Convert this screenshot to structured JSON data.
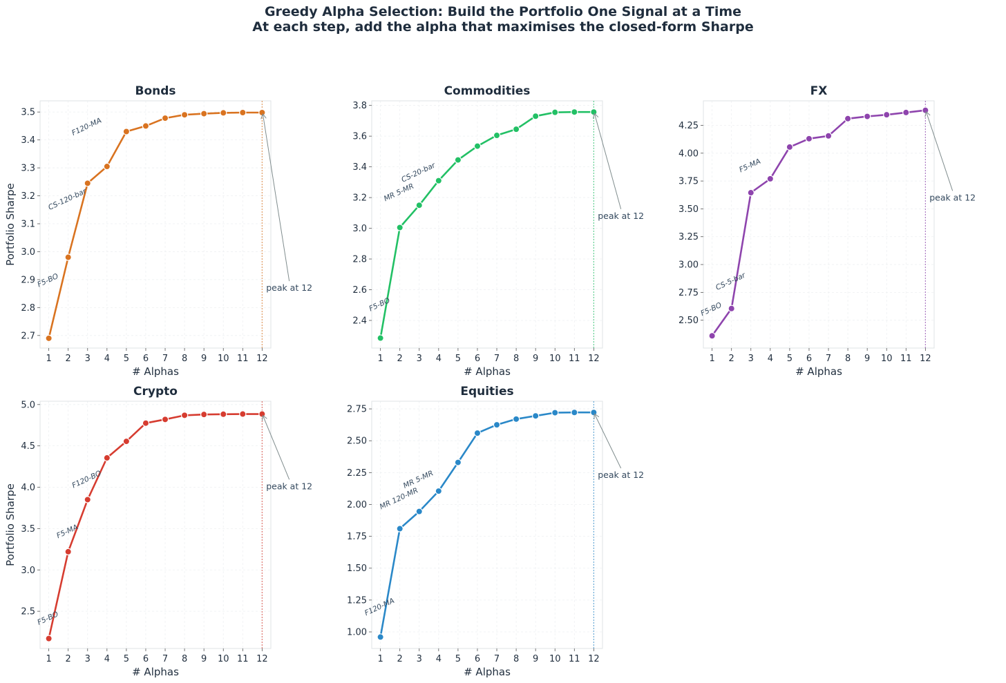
{
  "figure": {
    "title_line1": "Greedy Alpha Selection: Build the Portfolio One Signal at a Time",
    "title_line2": "At each step, add the alpha that maximises the closed-form Sharpe"
  },
  "chart_data": [
    {
      "type": "line",
      "title": "Bonds",
      "xlabel": "# Alphas",
      "ylabel": "Portfolio Sharpe",
      "color": "#d97320",
      "x": [
        1,
        2,
        3,
        4,
        5,
        6,
        7,
        8,
        9,
        10,
        11,
        12
      ],
      "values": [
        2.69,
        2.98,
        3.245,
        3.305,
        3.43,
        3.45,
        3.478,
        3.49,
        3.494,
        3.497,
        3.498,
        3.498
      ],
      "xlim": [
        0.55,
        12.45
      ],
      "ylim": [
        2.655,
        3.54
      ],
      "yticks": [
        2.7,
        2.8,
        2.9,
        3.0,
        3.1,
        3.2,
        3.3,
        3.4,
        3.5
      ],
      "ytick_labels": [
        "2.7",
        "2.8",
        "2.9",
        "3.0",
        "3.1",
        "3.2",
        "3.3",
        "3.4",
        "3.5"
      ],
      "peak_x": 12,
      "peak_label": "peak at 12",
      "peak_label_pos": [
        13.4,
        2.87
      ],
      "labels": [
        {
          "text": "F5-BO",
          "x": 1,
          "y": 2.89
        },
        {
          "text": "CS-120-bar",
          "x": 2,
          "y": 3.18
        },
        {
          "text": "F120-MA",
          "x": 3,
          "y": 3.44
        }
      ]
    },
    {
      "type": "line",
      "title": "Commodities",
      "xlabel": "# Alphas",
      "ylabel": "",
      "color": "#22c065",
      "x": [
        1,
        2,
        3,
        4,
        5,
        6,
        7,
        8,
        9,
        10,
        11,
        12
      ],
      "values": [
        2.285,
        3.005,
        3.15,
        3.31,
        3.445,
        3.535,
        3.605,
        3.645,
        3.73,
        3.755,
        3.757,
        3.757
      ],
      "xlim": [
        0.55,
        12.45
      ],
      "ylim": [
        2.22,
        3.83
      ],
      "yticks": [
        2.4,
        2.6,
        2.8,
        3.0,
        3.2,
        3.4,
        3.6,
        3.8
      ],
      "ytick_labels": [
        "2.4",
        "2.6",
        "2.8",
        "3.0",
        "3.2",
        "3.4",
        "3.6",
        "3.8"
      ],
      "peak_x": 12,
      "peak_label": "peak at 12",
      "peak_label_pos": [
        13.4,
        3.08
      ],
      "labels": [
        {
          "text": "F5-BO",
          "x": 1,
          "y": 2.49
        },
        {
          "text": "MR 5-MR",
          "x": 2,
          "y": 3.22
        },
        {
          "text": "CS-20-bar",
          "x": 3,
          "y": 3.35
        }
      ]
    },
    {
      "type": "line",
      "title": "FX",
      "xlabel": "# Alphas",
      "ylabel": "",
      "color": "#8e44ad",
      "x": [
        1,
        2,
        3,
        4,
        5,
        6,
        7,
        8,
        9,
        10,
        11,
        12
      ],
      "values": [
        2.36,
        2.605,
        3.645,
        3.77,
        4.055,
        4.13,
        4.155,
        4.31,
        4.33,
        4.345,
        4.365,
        4.385
      ],
      "xlim": [
        0.55,
        12.45
      ],
      "ylim": [
        2.25,
        4.47
      ],
      "yticks": [
        2.5,
        2.75,
        3.0,
        3.25,
        3.5,
        3.75,
        4.0,
        4.25
      ],
      "ytick_labels": [
        "2.50",
        "2.75",
        "3.00",
        "3.25",
        "3.50",
        "3.75",
        "4.00",
        "4.25"
      ],
      "peak_x": 12,
      "peak_label": "peak at 12",
      "peak_label_pos": [
        13.4,
        3.6
      ],
      "labels": [
        {
          "text": "F5-BO",
          "x": 1,
          "y": 2.58
        },
        {
          "text": "CS-5-bar",
          "x": 2,
          "y": 2.83
        },
        {
          "text": "F5-MA",
          "x": 3,
          "y": 3.87
        }
      ]
    },
    {
      "type": "line",
      "title": "Crypto",
      "xlabel": "# Alphas",
      "ylabel": "Portfolio Sharpe",
      "color": "#d63c30",
      "x": [
        1,
        2,
        3,
        4,
        5,
        6,
        7,
        8,
        9,
        10,
        11,
        12
      ],
      "values": [
        2.17,
        3.22,
        3.85,
        4.355,
        4.555,
        4.775,
        4.82,
        4.87,
        4.88,
        4.883,
        4.885,
        4.885
      ],
      "xlim": [
        0.55,
        12.45
      ],
      "ylim": [
        2.05,
        5.04
      ],
      "yticks": [
        2.5,
        3.0,
        3.5,
        4.0,
        4.5,
        5.0
      ],
      "ytick_labels": [
        "2.5",
        "3.0",
        "3.5",
        "4.0",
        "4.5",
        "5.0"
      ],
      "peak_x": 12,
      "peak_label": "peak at 12",
      "peak_label_pos": [
        13.4,
        4.01
      ],
      "labels": [
        {
          "text": "F5-BO",
          "x": 1,
          "y": 2.39
        },
        {
          "text": "F5-MA",
          "x": 2,
          "y": 3.44
        },
        {
          "text": "F120-BO",
          "x": 3,
          "y": 4.07
        }
      ]
    },
    {
      "type": "line",
      "title": "Equities",
      "xlabel": "# Alphas",
      "ylabel": "",
      "color": "#2a88c8",
      "x": [
        1,
        2,
        3,
        4,
        5,
        6,
        7,
        8,
        9,
        10,
        11,
        12
      ],
      "values": [
        0.96,
        1.81,
        1.945,
        2.105,
        2.33,
        2.56,
        2.625,
        2.67,
        2.695,
        2.72,
        2.722,
        2.722
      ],
      "xlim": [
        0.55,
        12.45
      ],
      "ylim": [
        0.87,
        2.81
      ],
      "yticks": [
        1.0,
        1.25,
        1.5,
        1.75,
        2.0,
        2.25,
        2.5,
        2.75
      ],
      "ytick_labels": [
        "1.00",
        "1.25",
        "1.50",
        "1.75",
        "2.00",
        "2.25",
        "2.50",
        "2.75"
      ],
      "peak_x": 12,
      "peak_label": "peak at 12",
      "peak_label_pos": [
        13.4,
        2.23
      ],
      "labels": [
        {
          "text": "F120-MA",
          "x": 1,
          "y": 1.18
        },
        {
          "text": "MR 120-MR",
          "x": 2,
          "y": 2.03
        },
        {
          "text": "MR 5-MR",
          "x": 3,
          "y": 2.18
        }
      ]
    }
  ]
}
